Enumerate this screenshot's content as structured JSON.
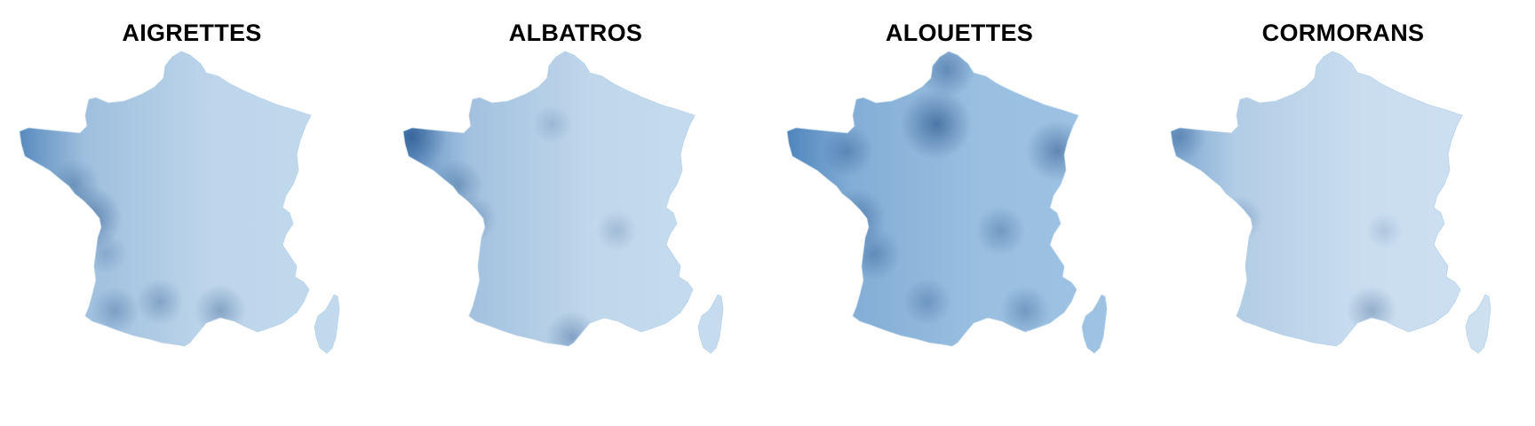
{
  "maps": [
    {
      "title": "AIGRETTES",
      "base_color": "#c4dbee",
      "coast_color": "#2d6aab",
      "hotspots": [
        {
          "name": "la-rochelle",
          "intensity": 0.9
        },
        {
          "name": "nantes",
          "intensity": 0.55
        },
        {
          "name": "toulouse",
          "intensity": 0.5
        },
        {
          "name": "montpellier",
          "intensity": 0.6
        },
        {
          "name": "bordeaux",
          "intensity": 0.35
        },
        {
          "name": "pau",
          "intensity": 0.5
        }
      ]
    },
    {
      "title": "ALBATROS",
      "base_color": "#c8ddef",
      "coast_color": "#2f6cad",
      "hotspots": [
        {
          "name": "brest",
          "intensity": 0.95
        },
        {
          "name": "nantes",
          "intensity": 0.55
        },
        {
          "name": "la-rochelle",
          "intensity": 0.5
        },
        {
          "name": "perpignan",
          "intensity": 0.6
        },
        {
          "name": "lyon",
          "intensity": 0.35
        },
        {
          "name": "paris",
          "intensity": 0.3
        }
      ]
    },
    {
      "title": "ALOUETTES",
      "base_color": "#9fc3e3",
      "coast_color": "#2f6cad",
      "hotspots": [
        {
          "name": "paris",
          "intensity": 1.0
        },
        {
          "name": "lille",
          "intensity": 0.7
        },
        {
          "name": "strasbourg",
          "intensity": 0.8
        },
        {
          "name": "la-rochelle",
          "intensity": 0.75
        },
        {
          "name": "lyon",
          "intensity": 0.55
        },
        {
          "name": "bordeaux",
          "intensity": 0.6
        },
        {
          "name": "marseille",
          "intensity": 0.55
        },
        {
          "name": "toulouse",
          "intensity": 0.5
        },
        {
          "name": "rennes",
          "intensity": 0.6
        }
      ]
    },
    {
      "title": "CORMORANS",
      "base_color": "#cfe1f1",
      "coast_color": "#5b8fc4",
      "hotspots": [
        {
          "name": "brest",
          "intensity": 0.6
        },
        {
          "name": "la-rochelle",
          "intensity": 0.45
        },
        {
          "name": "montpellier",
          "intensity": 0.55
        },
        {
          "name": "lyon",
          "intensity": 0.25
        }
      ]
    }
  ]
}
